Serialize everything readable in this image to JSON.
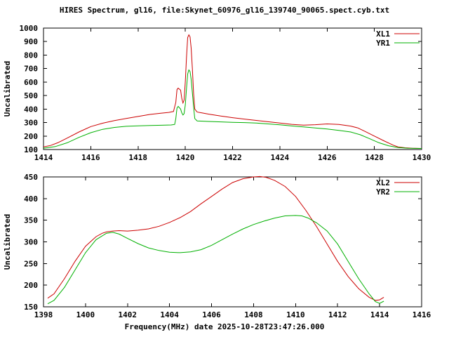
{
  "chart": {
    "title": "HIRES Spectrum, gl16, file:Skynet_60976_gl16_139740_90065.spect.cyb.txt",
    "xlabel": "Frequency(MHz) date 2025-10-28T23:47:26.000"
  },
  "colors": {
    "axis": "#000000",
    "background": "#ffffff",
    "red_series": "#cc0000",
    "green_series": "#00b000"
  },
  "chart_data": [
    {
      "type": "line",
      "title": "",
      "ylabel": "Uncalibrated",
      "xlim": [
        1414,
        1430
      ],
      "ylim": [
        100,
        1000
      ],
      "xticks": [
        1414,
        1416,
        1418,
        1420,
        1422,
        1424,
        1426,
        1428,
        1430
      ],
      "yticks": [
        100,
        200,
        300,
        400,
        500,
        600,
        700,
        800,
        900,
        1000
      ],
      "grid": false,
      "legend_position": "top-right",
      "series": [
        {
          "name": "XL1",
          "color": "#cc0000",
          "x": [
            1414.0,
            1414.3,
            1414.6,
            1415.0,
            1415.5,
            1416.0,
            1416.5,
            1417.0,
            1417.5,
            1418.0,
            1418.5,
            1419.0,
            1419.3,
            1419.5,
            1419.6,
            1419.65,
            1419.7,
            1419.8,
            1419.85,
            1419.9,
            1419.95,
            1420.0,
            1420.05,
            1420.1,
            1420.15,
            1420.2,
            1420.25,
            1420.3,
            1420.35,
            1420.4,
            1420.5,
            1420.7,
            1421.0,
            1421.5,
            1422.0,
            1422.5,
            1423.0,
            1423.5,
            1424.0,
            1424.5,
            1425.0,
            1425.5,
            1426.0,
            1426.5,
            1427.0,
            1427.3,
            1427.6,
            1428.0,
            1428.4,
            1428.8,
            1429.0,
            1429.3,
            1429.6,
            1430.0
          ],
          "y": [
            120,
            130,
            150,
            185,
            230,
            270,
            295,
            315,
            330,
            345,
            360,
            370,
            375,
            382,
            450,
            545,
            555,
            540,
            480,
            445,
            465,
            600,
            780,
            930,
            950,
            935,
            850,
            700,
            520,
            400,
            378,
            372,
            362,
            348,
            336,
            326,
            316,
            306,
            296,
            287,
            281,
            284,
            290,
            286,
            274,
            260,
            235,
            200,
            165,
            132,
            120,
            113,
            110,
            108
          ]
        },
        {
          "name": "YR1",
          "color": "#00b000",
          "x": [
            1414.0,
            1414.5,
            1415.0,
            1415.5,
            1416.0,
            1416.5,
            1417.0,
            1417.5,
            1418.0,
            1418.5,
            1419.0,
            1419.4,
            1419.55,
            1419.6,
            1419.65,
            1419.7,
            1419.8,
            1419.85,
            1419.9,
            1419.95,
            1420.0,
            1420.05,
            1420.1,
            1420.15,
            1420.2,
            1420.25,
            1420.3,
            1420.35,
            1420.4,
            1420.5,
            1421.0,
            1421.5,
            1422.0,
            1422.5,
            1423.0,
            1423.5,
            1424.0,
            1424.5,
            1425.0,
            1425.5,
            1426.0,
            1426.5,
            1427.0,
            1427.4,
            1427.8,
            1428.2,
            1428.6,
            1429.0,
            1429.4,
            1430.0
          ],
          "y": [
            110,
            122,
            150,
            190,
            225,
            250,
            264,
            272,
            276,
            278,
            280,
            282,
            286,
            330,
            408,
            420,
            400,
            372,
            356,
            366,
            430,
            550,
            660,
            690,
            678,
            620,
            520,
            420,
            330,
            312,
            308,
            305,
            302,
            300,
            296,
            290,
            283,
            275,
            268,
            260,
            252,
            242,
            230,
            210,
            180,
            150,
            128,
            115,
            110,
            108
          ]
        }
      ]
    },
    {
      "type": "line",
      "title": "",
      "ylabel": "Uncalibrated",
      "xlim": [
        1398,
        1416
      ],
      "ylim": [
        150,
        450
      ],
      "xticks": [
        1398,
        1400,
        1402,
        1404,
        1406,
        1408,
        1410,
        1412,
        1414,
        1416
      ],
      "yticks": [
        150,
        200,
        250,
        300,
        350,
        400,
        450
      ],
      "grid": false,
      "legend_position": "top-right",
      "series": [
        {
          "name": "XL2",
          "color": "#cc0000",
          "x": [
            1398.2,
            1398.5,
            1399.0,
            1399.5,
            1400.0,
            1400.5,
            1400.8,
            1401.0,
            1401.3,
            1401.6,
            1402.0,
            1402.5,
            1403.0,
            1403.5,
            1404.0,
            1404.5,
            1405.0,
            1405.5,
            1406.0,
            1406.5,
            1407.0,
            1407.5,
            1408.0,
            1408.3,
            1408.6,
            1409.0,
            1409.5,
            1410.0,
            1410.5,
            1411.0,
            1411.5,
            1412.0,
            1412.5,
            1413.0,
            1413.5,
            1413.8,
            1414.0,
            1414.2
          ],
          "y": [
            170,
            180,
            215,
            255,
            290,
            312,
            320,
            323,
            325,
            326,
            325,
            327,
            330,
            336,
            345,
            356,
            370,
            388,
            405,
            422,
            437,
            446,
            450,
            451,
            449,
            442,
            428,
            405,
            372,
            335,
            295,
            255,
            220,
            192,
            172,
            165,
            166,
            172
          ]
        },
        {
          "name": "YR2",
          "color": "#00b000",
          "x": [
            1398.2,
            1398.5,
            1399.0,
            1399.5,
            1400.0,
            1400.5,
            1401.0,
            1401.3,
            1401.6,
            1402.0,
            1402.5,
            1403.0,
            1403.5,
            1404.0,
            1404.5,
            1405.0,
            1405.5,
            1406.0,
            1406.5,
            1407.0,
            1407.5,
            1408.0,
            1408.5,
            1409.0,
            1409.5,
            1410.0,
            1410.3,
            1410.6,
            1411.0,
            1411.5,
            1412.0,
            1412.5,
            1413.0,
            1413.5,
            1413.8,
            1414.0,
            1414.2
          ],
          "y": [
            157,
            165,
            195,
            235,
            275,
            305,
            320,
            322,
            318,
            308,
            296,
            286,
            280,
            276,
            275,
            277,
            282,
            292,
            305,
            318,
            330,
            340,
            348,
            355,
            360,
            361,
            360,
            355,
            344,
            325,
            295,
            255,
            215,
            180,
            162,
            158,
            163
          ]
        }
      ]
    }
  ]
}
